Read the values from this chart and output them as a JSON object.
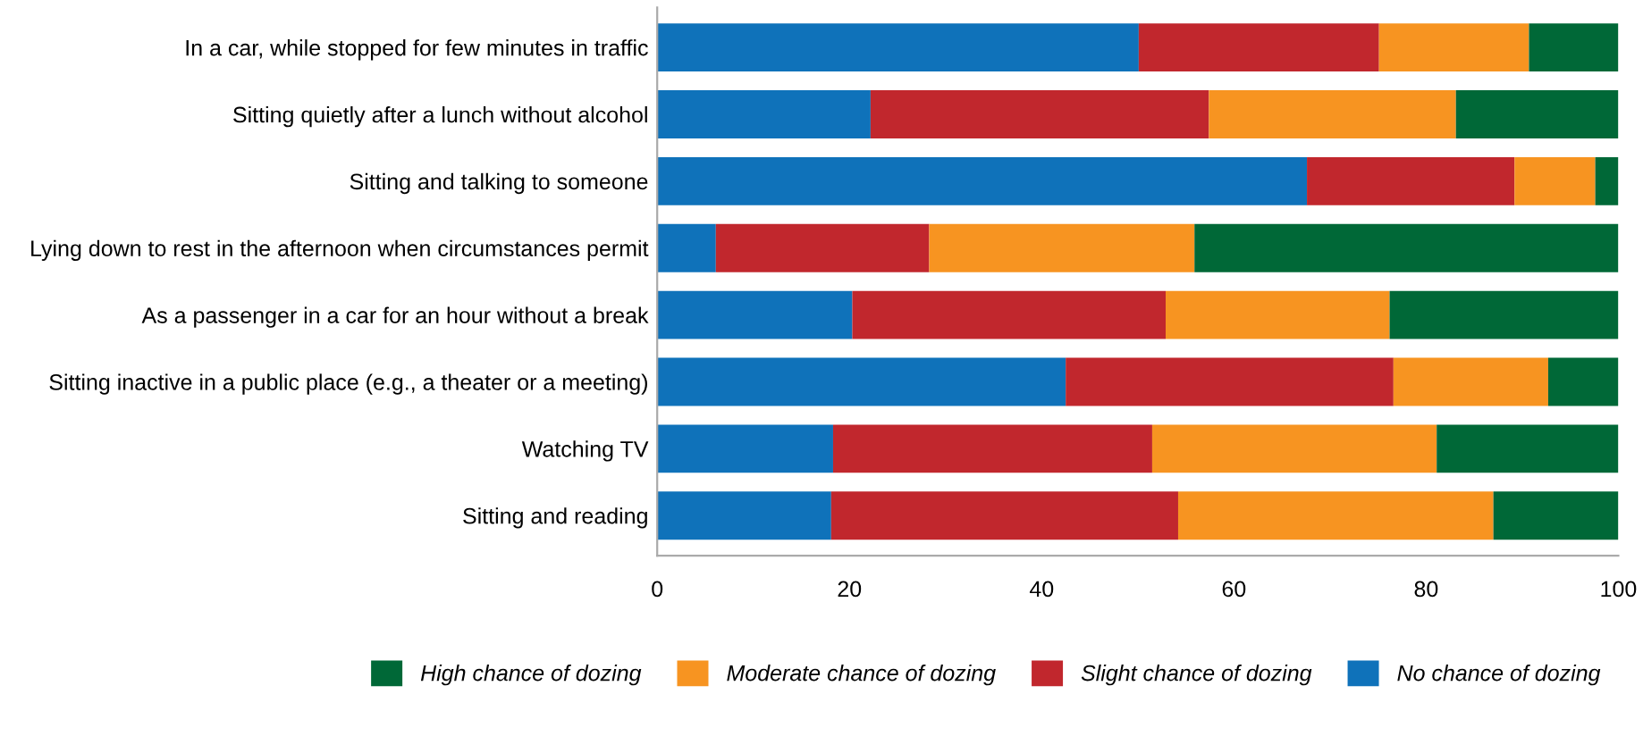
{
  "chart_data": {
    "type": "bar",
    "orientation": "horizontal",
    "stacked": true,
    "categories": [
      "In a car, while stopped for few minutes in traffic",
      "Sitting quietly after a lunch without alcohol",
      "Sitting and talking to someone",
      "Lying down to rest in the afternoon when circumstances permit",
      "As a passenger in a car for an hour without a break",
      "Sitting inactive in a public place (e.g., a theater or a meeting)",
      "Watching TV",
      "Sitting and reading"
    ],
    "series": [
      {
        "name": "No chance of dozing",
        "color": "#0f72ba",
        "values": [
          50.1,
          22.2,
          67.6,
          6.1,
          20.3,
          42.5,
          18.3,
          18.1
        ]
      },
      {
        "name": "Slight chance of dozing",
        "color": "#c1272d",
        "values": [
          25.0,
          35.2,
          21.6,
          22.2,
          32.6,
          34.1,
          33.2,
          36.1
        ]
      },
      {
        "name": "Moderate chance of dozing",
        "color": "#f79421",
        "values": [
          15.6,
          25.7,
          8.4,
          27.6,
          23.3,
          16.1,
          29.6,
          32.8
        ]
      },
      {
        "name": "High chance of dozing",
        "color": "#006837",
        "values": [
          9.3,
          16.9,
          2.4,
          44.1,
          23.8,
          7.3,
          18.9,
          13.0
        ]
      }
    ],
    "xlim": [
      0,
      100
    ],
    "xticks": [
      0,
      20,
      40,
      60,
      80,
      100
    ],
    "grid": false,
    "legend": "bottom"
  }
}
